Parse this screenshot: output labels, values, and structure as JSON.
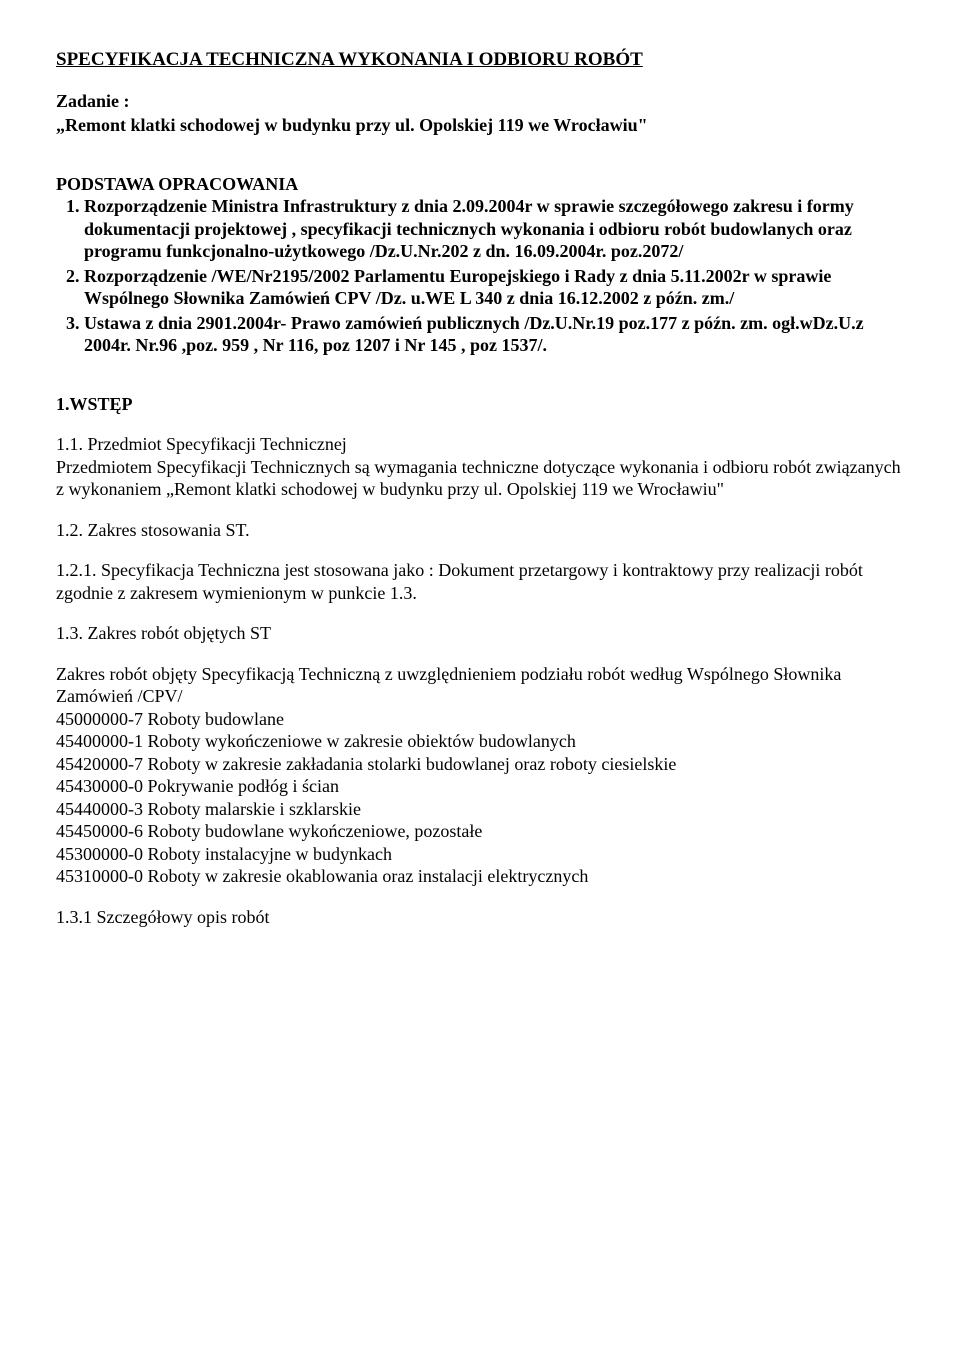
{
  "title": "SPECYFIKACJA TECHNICZNA WYKONANIA I ODBIORU ROBÓT",
  "task_label": "Zadanie :",
  "task_text": "„Remont klatki schodowej w budynku przy ul. Opolskiej 119 we Wrocławiu\"",
  "basis_heading": "PODSTAWA OPRACOWANIA",
  "basis_items": [
    "Rozporządzenie Ministra Infrastruktury z dnia 2.09.2004r w sprawie szczegółowego zakresu i formy dokumentacji projektowej , specyfikacji technicznych wykonania i odbioru robót budowlanych oraz programu funkcjonalno-użytkowego /Dz.U.Nr.202 z dn. 16.09.2004r. poz.2072/",
    "Rozporządzenie /WE/Nr2195/2002 Parlamentu Europejskiego i Rady z dnia 5.11.2002r w sprawie Wspólnego Słownika Zamówień CPV /Dz. u.WE L 340 z dnia 16.12.2002 z późn. zm./",
    "Ustawa z dnia 2901.2004r- Prawo zamówień publicznych  /Dz.U.Nr.19 poz.177 z późn. zm. ogł.wDz.U.z 2004r. Nr.96 ,poz. 959 , Nr 116, poz 1207 i Nr 145 , poz 1537/."
  ],
  "s1_heading": "1.WSTĘP",
  "s11_heading": "1.1. Przedmiot Specyfikacji  Technicznej",
  "s11_body": " Przedmiotem Specyfikacji Technicznych są wymagania techniczne dotyczące wykonania i odbioru robót związanych z wykonaniem  „Remont klatki schodowej w budynku przy ul. Opolskiej 119 we Wrocławiu\"",
  "s12_heading": "1.2. Zakres stosowania ST.",
  "s121_body": "1.2.1. Specyfikacja Techniczna jest stosowana jako : Dokument przetargowy i kontraktowy przy realizacji robót zgodnie z zakresem wymienionym w punkcie 1.3.",
  "s13_heading": "1.3. Zakres robót objętych ST",
  "s13_intro": "Zakres robót objęty Specyfikacją Techniczną z uwzględnieniem podziału robót według Wspólnego Słownika Zamówień /CPV/",
  "cpv": [
    "45000000-7 Roboty budowlane",
    "45400000-1 Roboty wykończeniowe w zakresie obiektów budowlanych",
    "45420000-7 Roboty w zakresie zakładania stolarki budowlanej oraz roboty ciesielskie",
    "45430000-0 Pokrywanie podłóg i ścian",
    "45440000-3 Roboty malarskie i szklarskie",
    "45450000-6 Roboty budowlane wykończeniowe, pozostałe",
    "45300000-0 Roboty instalacyjne w budynkach",
    "45310000-0 Roboty w zakresie okablowania oraz instalacji elektrycznych"
  ],
  "s131_heading": "1.3.1 Szczegółowy opis robót"
}
